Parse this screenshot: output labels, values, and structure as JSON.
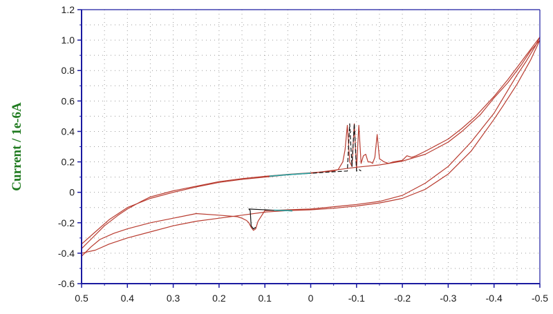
{
  "chart_data": {
    "type": "line",
    "title": "",
    "xlabel": "",
    "ylabel": "Current / 1e-6A",
    "xlim": [
      0.5,
      -0.5
    ],
    "ylim": [
      -0.6,
      1.2
    ],
    "x_ticks": [
      0.5,
      0.4,
      0.3,
      0.2,
      0.1,
      0,
      -0.1,
      -0.2,
      -0.3,
      -0.4,
      -0.5
    ],
    "x_tick_labels": [
      "0.5",
      "0.4",
      "0.3",
      "0.2",
      "0.1",
      "0",
      "-0.1",
      "-0.2",
      "-0.3",
      "-0.4",
      "-0.5"
    ],
    "y_ticks": [
      -0.6,
      -0.4,
      -0.2,
      0,
      0.2,
      0.4,
      0.6,
      0.8,
      1.0,
      1.2
    ],
    "y_tick_labels": [
      "-0.6",
      "-0.4",
      "-0.2",
      "0",
      "0.2",
      "0.4",
      "0.6",
      "0.8",
      "1.0",
      "1.2"
    ],
    "grid": true,
    "legend": "none",
    "colors": {
      "axis": "#1a1aa0",
      "grid": "#9a9a9a",
      "ylabel": "#1f7a1f",
      "curve": "#b83a2e",
      "baseline": "#111111",
      "fit": "#2aa8a8"
    },
    "series": [
      {
        "color": "#b83a2e",
        "x": [
          0.5,
          0.48,
          0.45,
          0.42,
          0.4,
          0.37,
          0.35,
          0.3,
          0.25,
          0.2,
          0.15,
          0.1,
          0.05,
          0.0,
          -0.03,
          -0.05,
          -0.06,
          -0.07,
          -0.075,
          -0.08,
          -0.085,
          -0.09,
          -0.095,
          -0.1,
          -0.105,
          -0.11,
          -0.115,
          -0.12,
          -0.125,
          -0.13,
          -0.135,
          -0.14,
          -0.145,
          -0.15,
          -0.155,
          -0.16,
          -0.17,
          -0.18,
          -0.2,
          -0.21,
          -0.22,
          -0.23,
          -0.25,
          -0.3,
          -0.33,
          -0.36,
          -0.4,
          -0.43,
          -0.46,
          -0.48,
          -0.5,
          -0.49,
          -0.47,
          -0.45,
          -0.42,
          -0.4,
          -0.35,
          -0.3,
          -0.25,
          -0.2,
          -0.15,
          -0.1,
          -0.05,
          0.0,
          0.05,
          0.08,
          0.1,
          0.115,
          0.12,
          0.125,
          0.13,
          0.135,
          0.14,
          0.15,
          0.16,
          0.2,
          0.25,
          0.3,
          0.35,
          0.4,
          0.43,
          0.46,
          0.48,
          0.5
        ],
        "y": [
          -0.37,
          -0.31,
          -0.22,
          -0.15,
          -0.11,
          -0.06,
          -0.03,
          0.01,
          0.04,
          0.07,
          0.09,
          0.105,
          0.118,
          0.128,
          0.135,
          0.14,
          0.15,
          0.2,
          0.28,
          0.44,
          0.2,
          0.17,
          0.45,
          0.15,
          0.44,
          0.19,
          0.24,
          0.25,
          0.2,
          0.2,
          0.19,
          0.23,
          0.38,
          0.22,
          0.21,
          0.2,
          0.19,
          0.2,
          0.21,
          0.24,
          0.23,
          0.24,
          0.27,
          0.35,
          0.42,
          0.5,
          0.63,
          0.74,
          0.86,
          0.94,
          1.02,
          0.96,
          0.86,
          0.77,
          0.62,
          0.52,
          0.33,
          0.17,
          0.06,
          -0.02,
          -0.06,
          -0.08,
          -0.095,
          -0.11,
          -0.115,
          -0.118,
          -0.12,
          -0.19,
          -0.24,
          -0.25,
          -0.23,
          -0.2,
          -0.185,
          -0.17,
          -0.16,
          -0.15,
          -0.14,
          -0.17,
          -0.2,
          -0.24,
          -0.27,
          -0.31,
          -0.36,
          -0.42
        ]
      },
      {
        "color": "#b83a2e",
        "x": [
          0.5,
          0.47,
          0.44,
          0.4,
          0.35,
          0.3,
          0.25,
          0.2,
          0.15,
          0.1,
          0.05,
          0.0,
          -0.05,
          -0.1,
          -0.15,
          -0.2,
          -0.25,
          -0.3,
          -0.33,
          -0.37,
          -0.4,
          -0.43,
          -0.46,
          -0.48,
          -0.5,
          -0.48,
          -0.45,
          -0.42,
          -0.4,
          -0.35,
          -0.3,
          -0.25,
          -0.2,
          -0.15,
          -0.1,
          -0.05,
          0.0,
          0.05,
          0.1,
          0.15,
          0.2,
          0.25,
          0.3,
          0.35,
          0.4,
          0.44,
          0.47,
          0.5
        ],
        "y": [
          -0.34,
          -0.26,
          -0.18,
          -0.1,
          -0.04,
          0.0,
          0.035,
          0.065,
          0.085,
          0.1,
          0.115,
          0.125,
          0.145,
          0.165,
          0.18,
          0.205,
          0.25,
          0.33,
          0.4,
          0.51,
          0.62,
          0.72,
          0.84,
          0.93,
          1.0,
          0.87,
          0.71,
          0.57,
          0.48,
          0.27,
          0.12,
          0.02,
          -0.04,
          -0.07,
          -0.09,
          -0.105,
          -0.115,
          -0.12,
          -0.13,
          -0.15,
          -0.17,
          -0.19,
          -0.22,
          -0.26,
          -0.3,
          -0.34,
          -0.38,
          -0.4
        ]
      },
      {
        "color": "#111111",
        "x": [
          0.09,
          0.05,
          0.0,
          -0.05,
          -0.08,
          -0.085,
          -0.09,
          -0.095,
          -0.1,
          -0.105,
          -0.11
        ],
        "y": [
          0.105,
          0.115,
          0.125,
          0.135,
          0.14,
          0.45,
          0.17,
          0.45,
          0.14,
          0.15,
          0.14
        ]
      },
      {
        "color": "#111111",
        "x": [
          0.12,
          0.125,
          0.13,
          0.132,
          0.135,
          0.1,
          0.08,
          0.06,
          0.04
        ],
        "y": [
          -0.23,
          -0.24,
          -0.22,
          -0.12,
          -0.11,
          -0.115,
          -0.118,
          -0.12,
          -0.122
        ]
      },
      {
        "color": "#2aa8a8",
        "x": [
          0.09,
          0.05,
          0.0
        ],
        "y": [
          0.106,
          0.116,
          0.126
        ]
      },
      {
        "color": "#2aa8a8",
        "x": [
          0.08,
          0.06,
          0.04
        ],
        "y": [
          -0.117,
          -0.119,
          -0.121
        ]
      }
    ]
  }
}
